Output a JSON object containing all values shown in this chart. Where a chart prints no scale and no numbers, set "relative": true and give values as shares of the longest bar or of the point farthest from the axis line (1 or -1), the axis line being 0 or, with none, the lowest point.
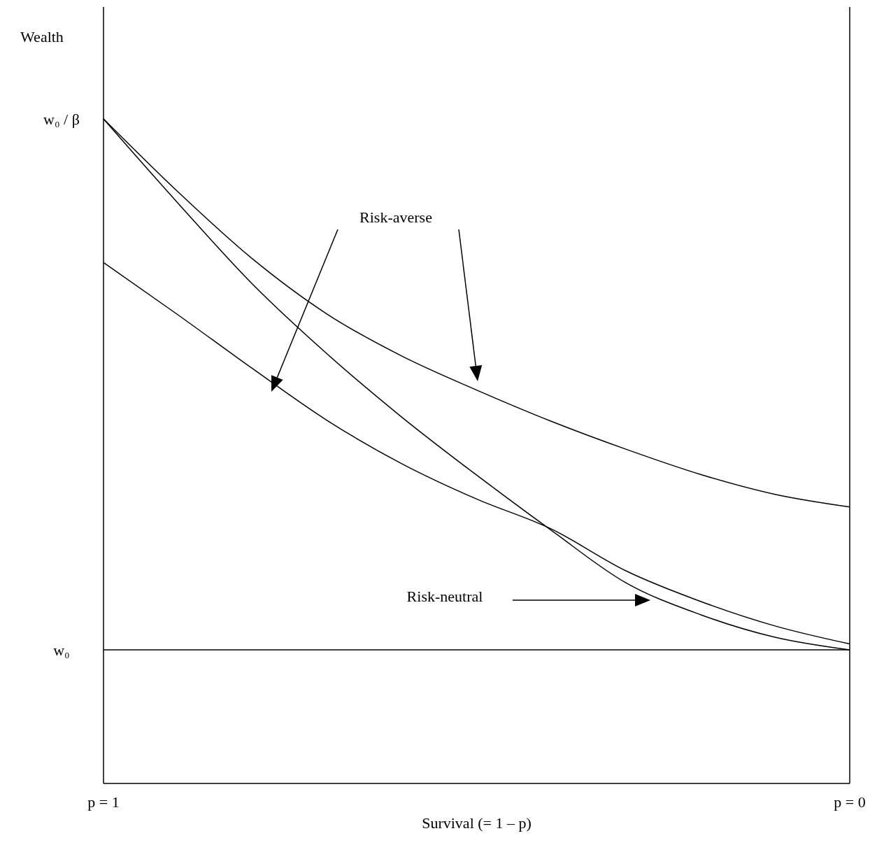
{
  "chart_data": {
    "type": "line",
    "xlabel": "Survival (= 1 – p)",
    "relative": true,
    "categories": [
      "p = 1",
      null,
      null,
      null,
      null,
      null,
      null,
      null,
      null,
      null,
      "p = 0"
    ],
    "grid": false,
    "marker": "none",
    "line_style": "solid",
    "series": [
      {
        "color": "#000000",
        "values": [
          1,
          0.89,
          0.789,
          0.706,
          0.643,
          0.592,
          0.545,
          0.503,
          0.465,
          0.435,
          0.416
        ]
      },
      {
        "color": "#000000",
        "values": [
          1,
          0.873,
          0.751,
          0.646,
          0.551,
          0.464,
          0.381,
          0.302,
          0.254,
          0.22,
          0.201
        ]
      },
      {
        "color": "#000000",
        "values": [
          0.784,
          0.705,
          0.624,
          0.546,
          0.481,
          0.428,
          0.383,
          0.32,
          0.274,
          0.237,
          0.21
        ]
      },
      {
        "color": "#000000",
        "values": [
          0.201,
          0.201,
          0.201,
          0.201,
          0.201,
          0.201,
          0.201,
          0.201,
          0.201,
          0.201,
          0.201
        ]
      }
    ],
    "annotations": [
      "Wealth",
      "w₀ / β",
      "w₀",
      "Risk-averse",
      "Risk-neutral"
    ]
  }
}
